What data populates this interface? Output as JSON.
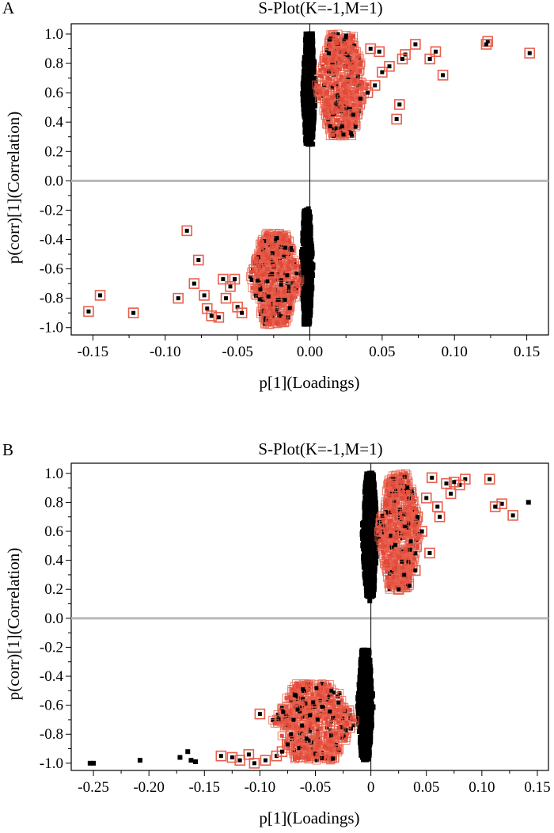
{
  "colors": {
    "point": "#000000",
    "highlight_box": "#e8604c",
    "highlight_fill": "#e3483a",
    "zero_line": "#b8b8b8"
  },
  "chart_data": [
    {
      "type": "scatter",
      "panel_label": "A",
      "title": "S-Plot(K=-1,M=1)",
      "xlabel": "p[1](Loadings)",
      "ylabel": "p(corr)[1](Correlation)",
      "xlim": [
        -0.165,
        0.165
      ],
      "ylim": [
        -1.05,
        1.07
      ],
      "xticks": [
        -0.15,
        -0.1,
        -0.05,
        0.0,
        0.05,
        0.1,
        0.15
      ],
      "xtick_labels": [
        "-0.15",
        "-0.10",
        "-0.05",
        "0.00",
        "0.05",
        "0.10",
        "0.15"
      ],
      "yticks": [
        1.0,
        0.8,
        0.6,
        0.4,
        0.2,
        0.0,
        -0.2,
        -0.4,
        -0.6,
        -0.8,
        -1.0
      ],
      "ytick_labels": [
        "1.0",
        "0.8",
        "0.6",
        "0.4",
        "0.2",
        "0.0",
        "-0.2",
        "-0.4",
        "-0.6",
        "-0.8",
        "-1.0"
      ],
      "dense_bands": [
        {
          "x_range": [
            -0.005,
            0.004
          ],
          "y_range": [
            0.25,
            1.0
          ],
          "highlighted": false
        },
        {
          "x_range": [
            0.004,
            0.04
          ],
          "y_range": [
            0.3,
            1.0
          ],
          "highlighted": true
        },
        {
          "x_range": [
            -0.006,
            0.002
          ],
          "y_range": [
            -0.98,
            -0.2
          ],
          "highlighted": false
        },
        {
          "x_range": [
            -0.042,
            -0.006
          ],
          "y_range": [
            -0.98,
            -0.35
          ],
          "highlighted": true
        }
      ],
      "highlighted_points": [
        [
          0.152,
          0.87
        ],
        [
          0.123,
          0.95
        ],
        [
          0.122,
          0.93
        ],
        [
          0.092,
          0.72
        ],
        [
          0.087,
          0.88
        ],
        [
          0.083,
          0.83
        ],
        [
          0.073,
          0.93
        ],
        [
          0.066,
          0.86
        ],
        [
          0.064,
          0.83
        ],
        [
          0.06,
          0.42
        ],
        [
          0.062,
          0.52
        ],
        [
          0.055,
          0.78
        ],
        [
          0.05,
          0.74
        ],
        [
          0.048,
          0.88
        ],
        [
          0.045,
          0.65
        ],
        [
          0.042,
          0.9
        ],
        [
          0.04,
          0.6
        ],
        [
          0.035,
          0.56
        ],
        [
          0.03,
          0.45
        ],
        [
          -0.153,
          -0.89
        ],
        [
          -0.145,
          -0.78
        ],
        [
          -0.122,
          -0.9
        ],
        [
          -0.091,
          -0.8
        ],
        [
          -0.085,
          -0.34
        ],
        [
          -0.077,
          -0.54
        ],
        [
          -0.08,
          -0.7
        ],
        [
          -0.073,
          -0.78
        ],
        [
          -0.071,
          -0.87
        ],
        [
          -0.068,
          -0.92
        ],
        [
          -0.063,
          -0.93
        ],
        [
          -0.06,
          -0.67
        ],
        [
          -0.058,
          -0.8
        ],
        [
          -0.055,
          -0.72
        ],
        [
          -0.052,
          -0.67
        ],
        [
          -0.05,
          -0.86
        ],
        [
          -0.047,
          -0.9
        ]
      ],
      "plain_points": [
        [
          0.002,
          0.25
        ],
        [
          0.0,
          0.3
        ],
        [
          -0.001,
          -0.19
        ],
        [
          -0.002,
          -0.25
        ]
      ]
    },
    {
      "type": "scatter",
      "panel_label": "B",
      "title": "S-Plot(K=-1,M=1)",
      "xlabel": "p[1](Loadings)",
      "ylabel": "p(corr)[1](Correlation)",
      "xlim": [
        -0.27,
        0.16
      ],
      "ylim": [
        -1.05,
        1.07
      ],
      "xticks": [
        -0.25,
        -0.2,
        -0.15,
        -0.1,
        -0.05,
        0,
        0.05,
        0.1,
        0.15
      ],
      "xtick_labels": [
        "-0.25",
        "-0.20",
        "-0.15",
        "-0.10",
        "-0.05",
        "0",
        "0.05",
        "0.10",
        "0.15"
      ],
      "yticks": [
        1.0,
        0.8,
        0.6,
        0.4,
        0.2,
        0.0,
        -0.2,
        -0.4,
        -0.6,
        -0.8,
        -1.0
      ],
      "ytick_labels": [
        "1.0",
        "0.8",
        "0.6",
        "0.4",
        "0.2",
        "0.0",
        "-0.2",
        "-0.4",
        "-0.6",
        "-0.8",
        "-1.0"
      ],
      "dense_bands": [
        {
          "x_range": [
            -0.008,
            0.006
          ],
          "y_range": [
            0.15,
            1.0
          ],
          "highlighted": false
        },
        {
          "x_range": [
            0.006,
            0.045
          ],
          "y_range": [
            0.2,
            1.0
          ],
          "highlighted": true
        },
        {
          "x_range": [
            -0.012,
            0.002
          ],
          "y_range": [
            -0.98,
            -0.22
          ],
          "highlighted": false
        },
        {
          "x_range": [
            -0.09,
            -0.012
          ],
          "y_range": [
            -0.98,
            -0.45
          ],
          "highlighted": true
        }
      ],
      "highlighted_points": [
        [
          0.128,
          0.71
        ],
        [
          0.118,
          0.79
        ],
        [
          0.112,
          0.77
        ],
        [
          0.107,
          0.96
        ],
        [
          0.085,
          0.96
        ],
        [
          0.08,
          0.92
        ],
        [
          0.075,
          0.94
        ],
        [
          0.072,
          0.86
        ],
        [
          0.068,
          0.93
        ],
        [
          0.062,
          0.7
        ],
        [
          0.06,
          0.77
        ],
        [
          0.055,
          0.97
        ],
        [
          0.053,
          0.45
        ],
        [
          0.05,
          0.83
        ],
        [
          0.046,
          0.6
        ],
        [
          0.042,
          0.7
        ],
        [
          0.04,
          0.33
        ],
        [
          0.036,
          0.53
        ],
        [
          0.03,
          0.3
        ],
        [
          0.025,
          0.2
        ],
        [
          -0.135,
          -0.95
        ],
        [
          -0.125,
          -0.96
        ],
        [
          -0.118,
          -0.98
        ],
        [
          -0.11,
          -0.94
        ],
        [
          -0.105,
          -1.0
        ],
        [
          -0.1,
          -0.66
        ],
        [
          -0.095,
          -0.98
        ],
        [
          -0.085,
          -0.95
        ],
        [
          -0.08,
          -0.92
        ],
        [
          -0.075,
          -0.87
        ],
        [
          -0.072,
          -0.8
        ],
        [
          -0.066,
          -0.63
        ],
        [
          -0.062,
          -0.74
        ],
        [
          -0.058,
          -0.83
        ],
        [
          -0.055,
          -0.67
        ],
        [
          -0.052,
          -0.58
        ],
        [
          -0.048,
          -0.7
        ],
        [
          -0.044,
          -0.61
        ]
      ],
      "plain_points": [
        [
          0.142,
          0.8
        ],
        [
          -0.253,
          -1.0
        ],
        [
          -0.25,
          -1.0
        ],
        [
          -0.208,
          -0.98
        ],
        [
          -0.172,
          -0.96
        ],
        [
          -0.165,
          -0.92
        ],
        [
          -0.162,
          -0.98
        ],
        [
          -0.158,
          -0.99
        ],
        [
          -0.001,
          0.12
        ]
      ]
    }
  ]
}
